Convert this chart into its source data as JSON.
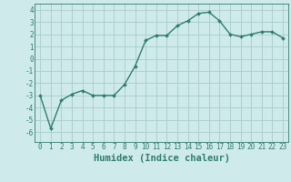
{
  "x": [
    0,
    1,
    2,
    3,
    4,
    5,
    6,
    7,
    8,
    9,
    10,
    11,
    12,
    13,
    14,
    15,
    16,
    17,
    18,
    19,
    20,
    21,
    22,
    23
  ],
  "y": [
    -3.0,
    -5.7,
    -3.4,
    -2.9,
    -2.6,
    -3.0,
    -3.0,
    -3.0,
    -2.1,
    -0.6,
    1.5,
    1.9,
    1.9,
    2.7,
    3.1,
    3.7,
    3.8,
    3.1,
    2.0,
    1.8,
    2.0,
    2.2,
    2.2,
    1.7
  ],
  "line_color": "#2e7d6e",
  "marker": "D",
  "marker_size": 2.0,
  "bg_color": "#ceeaea",
  "grid_color": "#aacccc",
  "xlabel": "Humidex (Indice chaleur)",
  "ylim": [
    -6.8,
    4.5
  ],
  "xlim": [
    -0.5,
    23.5
  ],
  "yticks": [
    -6,
    -5,
    -4,
    -3,
    -2,
    -1,
    0,
    1,
    2,
    3,
    4
  ],
  "xticks": [
    0,
    1,
    2,
    3,
    4,
    5,
    6,
    7,
    8,
    9,
    10,
    11,
    12,
    13,
    14,
    15,
    16,
    17,
    18,
    19,
    20,
    21,
    22,
    23
  ],
  "tick_fontsize": 5.5,
  "xlabel_fontsize": 7.5,
  "line_width": 1.0
}
